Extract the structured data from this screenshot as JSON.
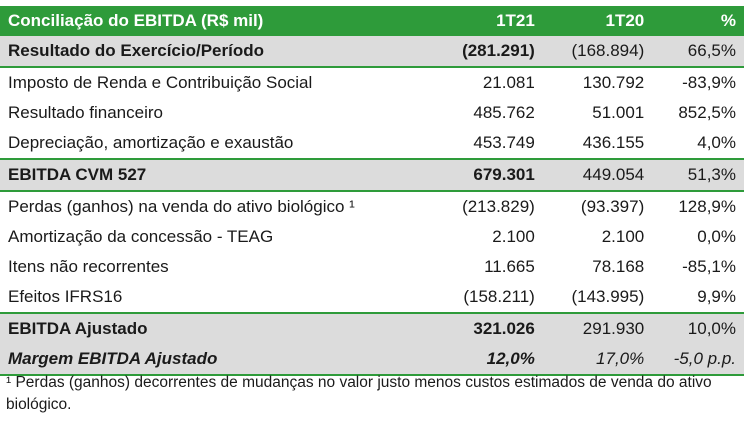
{
  "header": {
    "title": "Conciliação do EBITDA (R$ mil)",
    "col_1t21": "1T21",
    "col_1t20": "1T20",
    "col_pct": "%"
  },
  "rows": [
    {
      "label": "Resultado do Exercício/Período",
      "v1": "(281.291)",
      "v2": "(168.894)",
      "pct": "66,5%"
    },
    {
      "label": "Imposto de Renda e Contribuição Social",
      "v1": "21.081",
      "v2": "130.792",
      "pct": "-83,9%"
    },
    {
      "label": "Resultado financeiro",
      "v1": "485.762",
      "v2": "51.001",
      "pct": "852,5%"
    },
    {
      "label": "Depreciação, amortização e exaustão",
      "v1": "453.749",
      "v2": "436.155",
      "pct": "4,0%"
    },
    {
      "label": "EBITDA CVM 527",
      "v1": "679.301",
      "v2": "449.054",
      "pct": "51,3%"
    },
    {
      "label": "Perdas (ganhos) na venda do ativo biológico ¹",
      "v1": "(213.829)",
      "v2": "(93.397)",
      "pct": "128,9%"
    },
    {
      "label": "Amortização da concessão - TEAG",
      "v1": "2.100",
      "v2": "2.100",
      "pct": "0,0%"
    },
    {
      "label": "Itens não recorrentes",
      "v1": "11.665",
      "v2": "78.168",
      "pct": "-85,1%"
    },
    {
      "label": "Efeitos IFRS16",
      "v1": "(158.211)",
      "v2": "(143.995)",
      "pct": "9,9%"
    },
    {
      "label": "EBITDA Ajustado",
      "v1": "321.026",
      "v2": "291.930",
      "pct": "10,0%"
    },
    {
      "label": "Margem EBITDA Ajustado",
      "v1": "12,0%",
      "v2": "17,0%",
      "pct": "-5,0 p.p."
    }
  ],
  "footnote": "¹ Perdas (ganhos) decorrentes de mudanças no valor justo menos custos estimados de venda do ativo biológico.",
  "colors": {
    "header_green": "#2e9b3a",
    "row_grey": "#dcdcdc"
  }
}
